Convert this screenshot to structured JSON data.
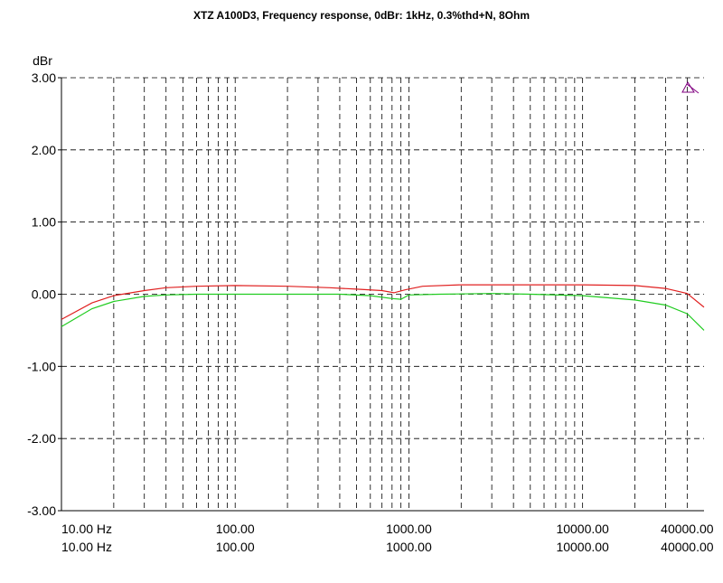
{
  "chart_data": {
    "type": "line",
    "title": "XTZ A100D3, Frequency response, 0dBr: 1kHz, 0.3%thd+N, 8Ohm",
    "ylabel": "dBr",
    "xlabel": "",
    "x_scale": "log",
    "xlim": [
      10,
      50000
    ],
    "ylim": [
      -3,
      3
    ],
    "grid": true,
    "y_ticks": [
      3,
      2,
      1,
      0,
      -1,
      -2,
      -3
    ],
    "y_tick_labels": [
      "3.00",
      "2.00",
      "1.00",
      "0.00",
      "-1.00",
      "-2.00",
      "-3.00"
    ],
    "x_tick_labels_row1": [
      {
        "value": 10,
        "label": "10.00 Hz"
      },
      {
        "value": 100,
        "label": "100.00"
      },
      {
        "value": 1000,
        "label": "1000.00"
      },
      {
        "value": 10000,
        "label": "10000.00"
      },
      {
        "value": 40000,
        "label": "40000.00"
      }
    ],
    "x_tick_labels_row2": [
      {
        "value": 10,
        "label": "10.00 Hz"
      },
      {
        "value": 100,
        "label": "100.00"
      },
      {
        "value": 1000,
        "label": "1000.00"
      },
      {
        "value": 10000,
        "label": "10000.00"
      },
      {
        "value": 40000,
        "label": "40000.00"
      }
    ],
    "x_gridlines": [
      20,
      30,
      40,
      50,
      60,
      70,
      80,
      90,
      100,
      200,
      300,
      400,
      500,
      600,
      700,
      800,
      900,
      1000,
      2000,
      3000,
      4000,
      5000,
      6000,
      7000,
      8000,
      9000,
      10000,
      20000,
      30000,
      40000
    ],
    "series": [
      {
        "color": "#e02020",
        "x": [
          10,
          15,
          20,
          30,
          40,
          60,
          100,
          200,
          350,
          500,
          700,
          820,
          950,
          1200,
          2000,
          5000,
          10000,
          20000,
          30000,
          40000,
          50000
        ],
        "y": [
          -0.35,
          -0.12,
          -0.02,
          0.05,
          0.09,
          0.11,
          0.12,
          0.11,
          0.09,
          0.07,
          0.05,
          0.02,
          0.06,
          0.11,
          0.13,
          0.13,
          0.13,
          0.12,
          0.08,
          0.01,
          -0.18
        ]
      },
      {
        "color": "#20cc20",
        "x": [
          10,
          15,
          20,
          30,
          40,
          60,
          100,
          200,
          400,
          600,
          800,
          900,
          1000,
          1500,
          3000,
          5000,
          10000,
          20000,
          30000,
          40000,
          50000
        ],
        "y": [
          -0.45,
          -0.2,
          -0.1,
          -0.03,
          -0.01,
          0.0,
          0.0,
          0.0,
          0.0,
          -0.02,
          -0.06,
          -0.07,
          -0.01,
          0.0,
          0.01,
          0.0,
          -0.02,
          -0.08,
          -0.15,
          -0.27,
          -0.5
        ]
      }
    ],
    "marker_color": "#800080"
  }
}
